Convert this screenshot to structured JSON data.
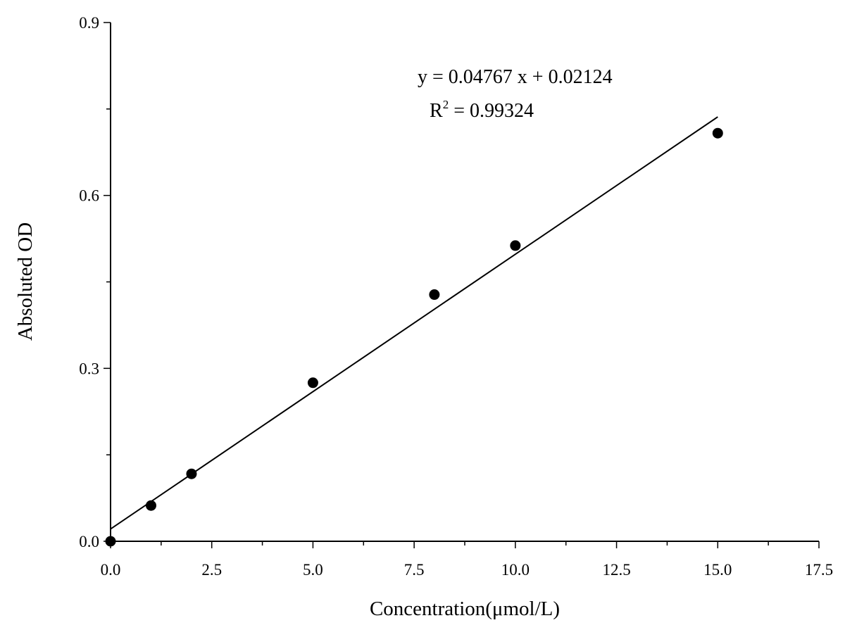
{
  "chart_data": {
    "type": "scatter",
    "x_label": "Concentration(μmol/L)",
    "y_label": "Absoluted OD",
    "equation": "y = 0.04767 x + 0.02124",
    "r_squared": {
      "symbol": "R",
      "superscript": "2",
      "text": " = 0.99324"
    },
    "fit": {
      "slope": 0.04767,
      "intercept": 0.02124
    },
    "x": [
      0,
      1,
      2,
      5,
      8,
      10,
      15
    ],
    "values": [
      0,
      0.062,
      0.117,
      0.275,
      0.428,
      0.513,
      0.708
    ],
    "color": "#000000",
    "xlim": [
      0,
      17.5
    ],
    "ylim": [
      0,
      0.9
    ],
    "xticks": [
      {
        "value": 0,
        "label": "0.0"
      },
      2.5,
      {
        "value": 5,
        "label": "5.0"
      },
      7.5,
      {
        "value": 10,
        "label": "10.0"
      },
      12.5,
      {
        "value": 15,
        "label": "15.0"
      },
      17.5
    ],
    "xminorticks": [
      1.25,
      3.75,
      6.25,
      8.75,
      11.25,
      13.75,
      16.25
    ],
    "yticks": [
      {
        "value": 0,
        "label": "0.0"
      },
      0.3,
      0.6,
      0.9
    ],
    "yminorticks": [
      0.15,
      0.45,
      0.75
    ]
  }
}
